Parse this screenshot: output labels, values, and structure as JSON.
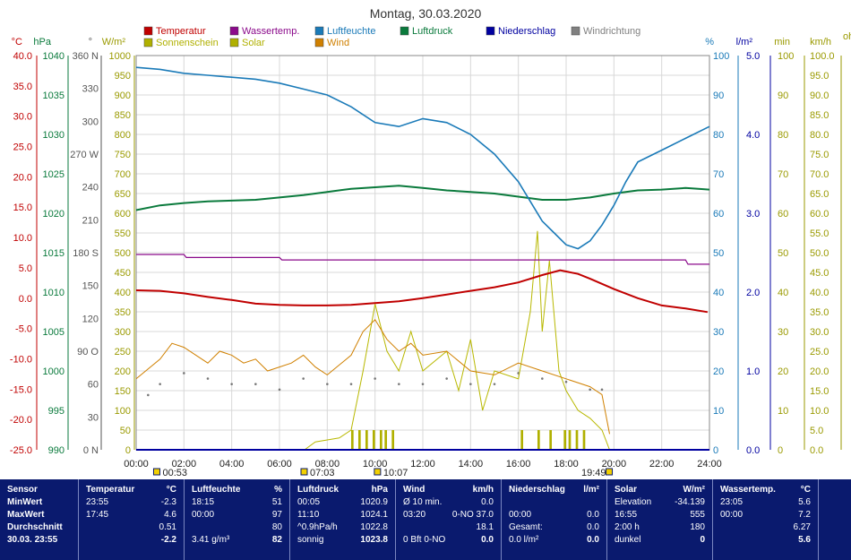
{
  "title": "Montag, 30.03.2020",
  "legend": [
    {
      "label": "Temperatur",
      "color": "#c00000"
    },
    {
      "label": "Wassertemp.",
      "color": "#8b0a8b"
    },
    {
      "label": "Luftfeuchte",
      "color": "#1a7ab8"
    },
    {
      "label": "Luftdruck",
      "color": "#0a7a3c"
    },
    {
      "label": "Niederschlag",
      "color": "#0000a0"
    },
    {
      "label": "Windrichtung",
      "color": "#808080"
    },
    {
      "label": "Sonnenschein",
      "color": "#b0b000"
    },
    {
      "label": "Solar",
      "color": "#b0b000"
    },
    {
      "label": "Wind",
      "color": "#d08000"
    }
  ],
  "axes": {
    "temp": {
      "unit": "°C",
      "color": "#c00000",
      "ticks": [
        "40.0",
        "35.0",
        "30.0",
        "25.0",
        "20.0",
        "15.0",
        "10.0",
        "5.0",
        "0.0",
        "-5.0",
        "-10.0",
        "-15.0",
        "-20.0",
        "-25.0"
      ]
    },
    "press": {
      "unit": "hPa",
      "color": "#0a7a3c",
      "ticks": [
        "1040",
        "1035",
        "1030",
        "1025",
        "1020",
        "1015",
        "1010",
        "1005",
        "1000",
        "995",
        "990"
      ]
    },
    "dir": {
      "unit": "°",
      "color": "#555555",
      "ticks": [
        "360 N",
        "330",
        "300",
        "270 W",
        "240",
        "210",
        "180 S",
        "150",
        "120",
        "90 O",
        "60",
        "30",
        "0 N"
      ]
    },
    "solar": {
      "unit": "W/m²",
      "color": "#9a9a00",
      "ticks": [
        "1000",
        "950",
        "900",
        "850",
        "800",
        "750",
        "700",
        "650",
        "600",
        "550",
        "500",
        "450",
        "400",
        "350",
        "300",
        "250",
        "200",
        "150",
        "100",
        "50",
        "0"
      ]
    },
    "hum": {
      "unit": "%",
      "color": "#1a7ab8",
      "ticks": [
        "100",
        "90",
        "80",
        "70",
        "60",
        "50",
        "40",
        "30",
        "20",
        "10",
        "0"
      ]
    },
    "rain": {
      "unit": "l/m²",
      "color": "#0000a0",
      "ticks": [
        "5.0",
        "4.0",
        "3.0",
        "2.0",
        "1.0",
        "0.0"
      ]
    },
    "sun": {
      "unit": "min",
      "color": "#9a9a00",
      "ticks": [
        "100",
        "90",
        "80",
        "70",
        "60",
        "50",
        "40",
        "30",
        "20",
        "10",
        "0"
      ]
    },
    "wind": {
      "unit": "km/h",
      "color": "#9a9a00",
      "ticks": [
        "100.0",
        "95.0",
        "90.0",
        "85.0",
        "80.0",
        "75.0",
        "70.0",
        "65.0",
        "60.0",
        "55.0",
        "50.0",
        "45.0",
        "40.0",
        "35.0",
        "30.0",
        "25.0",
        "20.0",
        "15.0",
        "10.0",
        "5.0",
        "0.0"
      ]
    },
    "edge_label": "oh"
  },
  "time_ticks": [
    "00:00",
    "02:00",
    "04:00",
    "06:00",
    "08:00",
    "10:00",
    "12:00",
    "14:00",
    "16:00",
    "18:00",
    "20:00",
    "22:00",
    "24:00"
  ],
  "time_markers": [
    {
      "label": "00:53",
      "hour": 0.88
    },
    {
      "label": "07:03",
      "hour": 7.05
    },
    {
      "label": "10:07",
      "hour": 10.12
    },
    {
      "label": "19:49",
      "hour": 19.82
    }
  ],
  "chart_data": {
    "type": "line",
    "x_unit": "hour",
    "xlim": [
      0,
      24
    ],
    "series": [
      {
        "name": "Luftfeuchte",
        "unit": "%",
        "points": [
          [
            0,
            97
          ],
          [
            1,
            96.5
          ],
          [
            2,
            95.5
          ],
          [
            3,
            95
          ],
          [
            4,
            94.5
          ],
          [
            5,
            94
          ],
          [
            6,
            93
          ],
          [
            7,
            91.5
          ],
          [
            8,
            90
          ],
          [
            9,
            87
          ],
          [
            10,
            83
          ],
          [
            11,
            82
          ],
          [
            12,
            84
          ],
          [
            13,
            83
          ],
          [
            14,
            80
          ],
          [
            15,
            75
          ],
          [
            16,
            68
          ],
          [
            16.5,
            63
          ],
          [
            17,
            58
          ],
          [
            17.5,
            55
          ],
          [
            18,
            52
          ],
          [
            18.5,
            51
          ],
          [
            19,
            53
          ],
          [
            19.5,
            57
          ],
          [
            20,
            62
          ],
          [
            20.5,
            68
          ],
          [
            21,
            73
          ],
          [
            22,
            76
          ],
          [
            23,
            79
          ],
          [
            24,
            82
          ]
        ]
      },
      {
        "name": "Luftdruck",
        "unit": "hPa",
        "points": [
          [
            0,
            1020.4
          ],
          [
            1,
            1021.0
          ],
          [
            2,
            1021.3
          ],
          [
            3,
            1021.5
          ],
          [
            4,
            1021.6
          ],
          [
            5,
            1021.7
          ],
          [
            6,
            1022.0
          ],
          [
            7,
            1022.3
          ],
          [
            8,
            1022.7
          ],
          [
            9,
            1023.1
          ],
          [
            10,
            1023.3
          ],
          [
            11,
            1023.5
          ],
          [
            12,
            1023.2
          ],
          [
            13,
            1022.9
          ],
          [
            14,
            1022.7
          ],
          [
            15,
            1022.5
          ],
          [
            16,
            1022.1
          ],
          [
            17,
            1021.7
          ],
          [
            18,
            1021.7
          ],
          [
            19,
            1022.0
          ],
          [
            20,
            1022.5
          ],
          [
            21,
            1022.9
          ],
          [
            22,
            1023.0
          ],
          [
            23,
            1023.2
          ],
          [
            24,
            1023.0
          ]
        ]
      },
      {
        "name": "Wassertemp.",
        "unit": "°C",
        "points": [
          [
            0,
            7.2
          ],
          [
            2,
            7.2
          ],
          [
            2.1,
            6.7
          ],
          [
            6,
            6.7
          ],
          [
            6.1,
            6.3
          ],
          [
            23.0,
            6.3
          ],
          [
            23.1,
            5.6
          ],
          [
            24,
            5.6
          ]
        ]
      },
      {
        "name": "Temperatur",
        "unit": "°C",
        "points": [
          [
            0,
            1.3
          ],
          [
            1,
            1.2
          ],
          [
            2,
            0.8
          ],
          [
            3,
            0.2
          ],
          [
            4,
            -0.3
          ],
          [
            5,
            -0.9
          ],
          [
            6,
            -1.1
          ],
          [
            7,
            -1.2
          ],
          [
            8,
            -1.2
          ],
          [
            9,
            -1.1
          ],
          [
            10,
            -0.8
          ],
          [
            11,
            -0.5
          ],
          [
            12,
            0.0
          ],
          [
            13,
            0.6
          ],
          [
            14,
            1.2
          ],
          [
            15,
            1.8
          ],
          [
            16,
            2.6
          ],
          [
            17,
            3.8
          ],
          [
            17.75,
            4.6
          ],
          [
            18.5,
            4.0
          ],
          [
            19,
            3.2
          ],
          [
            20,
            1.5
          ],
          [
            21,
            0.0
          ],
          [
            22,
            -1.2
          ],
          [
            23,
            -1.7
          ],
          [
            23.92,
            -2.3
          ]
        ]
      },
      {
        "name": "Solar",
        "unit": "W/m²",
        "points": [
          [
            0,
            0
          ],
          [
            7.05,
            0
          ],
          [
            7.5,
            20
          ],
          [
            8.5,
            30
          ],
          [
            9,
            50
          ],
          [
            9.5,
            200
          ],
          [
            10,
            370
          ],
          [
            10.5,
            250
          ],
          [
            11,
            200
          ],
          [
            11.5,
            300
          ],
          [
            12,
            200
          ],
          [
            13,
            250
          ],
          [
            13.5,
            150
          ],
          [
            14,
            280
          ],
          [
            14.5,
            100
          ],
          [
            15,
            200
          ],
          [
            16,
            180
          ],
          [
            16.5,
            350
          ],
          [
            16.8,
            555
          ],
          [
            17.0,
            300
          ],
          [
            17.3,
            480
          ],
          [
            17.7,
            200
          ],
          [
            18,
            150
          ],
          [
            18.5,
            100
          ],
          [
            19,
            80
          ],
          [
            19.5,
            50
          ],
          [
            19.82,
            0
          ],
          [
            24,
            0
          ]
        ]
      },
      {
        "name": "Wind",
        "unit": "km/h",
        "points": [
          [
            0,
            18
          ],
          [
            1,
            23
          ],
          [
            1.5,
            27
          ],
          [
            2,
            26
          ],
          [
            2.5,
            24
          ],
          [
            3,
            22
          ],
          [
            3.5,
            25
          ],
          [
            4,
            24
          ],
          [
            4.5,
            22
          ],
          [
            5,
            23
          ],
          [
            5.5,
            20
          ],
          [
            6,
            21
          ],
          [
            6.5,
            22
          ],
          [
            7,
            24
          ],
          [
            7.5,
            21
          ],
          [
            8,
            19
          ],
          [
            9,
            24
          ],
          [
            9.5,
            30
          ],
          [
            10,
            33
          ],
          [
            10.5,
            28
          ],
          [
            11,
            25
          ],
          [
            11.5,
            27
          ],
          [
            12,
            24
          ],
          [
            13,
            25
          ],
          [
            14,
            20
          ],
          [
            15,
            19
          ],
          [
            16,
            22
          ],
          [
            17,
            20
          ],
          [
            18,
            18
          ],
          [
            19,
            16
          ],
          [
            19.5,
            14
          ],
          [
            19.82,
            4
          ]
        ]
      },
      {
        "name": "Windrichtung",
        "unit": "°",
        "points": [
          [
            0.5,
            50
          ],
          [
            1,
            60
          ],
          [
            2,
            70
          ],
          [
            3,
            65
          ],
          [
            4,
            60
          ],
          [
            5,
            60
          ],
          [
            6,
            55
          ],
          [
            7,
            65
          ],
          [
            8,
            60
          ],
          [
            9,
            60
          ],
          [
            10,
            65
          ],
          [
            11,
            60
          ],
          [
            12,
            60
          ],
          [
            13,
            65
          ],
          [
            14,
            60
          ],
          [
            15,
            60
          ],
          [
            16,
            70
          ],
          [
            17,
            65
          ],
          [
            18,
            62
          ],
          [
            19,
            55
          ],
          [
            19.5,
            55
          ]
        ]
      },
      {
        "name": "Sonnenschein",
        "unit": "min",
        "bars": [
          [
            9.0,
            9.1
          ],
          [
            9.3,
            9.4
          ],
          [
            9.6,
            9.7
          ],
          [
            9.9,
            10.0
          ],
          [
            10.2,
            10.3
          ],
          [
            10.4,
            10.5
          ],
          [
            10.7,
            10.8
          ],
          [
            16.1,
            16.2
          ],
          [
            16.8,
            16.9
          ],
          [
            17.3,
            17.4
          ],
          [
            17.9,
            18.0
          ],
          [
            18.1,
            18.2
          ],
          [
            18.4,
            18.5
          ],
          [
            18.7,
            18.8
          ]
        ],
        "value": 5
      }
    ]
  },
  "summary": {
    "sensor": {
      "header": "Sensor",
      "rows": [
        "MinWert",
        "MaxWert",
        "Durchschnitt",
        "30.03. 23:55"
      ]
    },
    "temperatur": {
      "header": "Temperatur",
      "unit": "°C",
      "rows": [
        [
          "23:55",
          "-2.3"
        ],
        [
          "17:45",
          "4.6"
        ],
        [
          "",
          "0.51"
        ],
        [
          "",
          "-2.2"
        ]
      ]
    },
    "luftfeuchte": {
      "header": "Luftfeuchte",
      "unit": "%",
      "rows": [
        [
          "18:15",
          "51"
        ],
        [
          "00:00",
          "97"
        ],
        [
          "",
          "80"
        ],
        [
          "3.41 g/m³",
          "82"
        ]
      ]
    },
    "luftdruck": {
      "header": "Luftdruck",
      "unit": "hPa",
      "rows": [
        [
          "00:05",
          "1020.9"
        ],
        [
          "11:10",
          "1024.1"
        ],
        [
          "^0.9hPa/h",
          "1022.8"
        ],
        [
          "sonnig",
          "1023.8"
        ]
      ]
    },
    "wind": {
      "header": "Wind",
      "unit": "km/h",
      "rows": [
        [
          "Ø 10 min.",
          "0.0"
        ],
        [
          "03:20",
          "0-NO 37.0"
        ],
        [
          "",
          "18.1"
        ],
        [
          "0 Bft 0-NO",
          "0.0"
        ]
      ]
    },
    "niederschlag": {
      "header": "Niederschlag",
      "unit": "l/m²",
      "rows": [
        [
          "",
          ""
        ],
        [
          "00:00",
          "0.0"
        ],
        [
          "Gesamt:",
          "0.0"
        ],
        [
          "0.0 l/m²",
          "0.0"
        ]
      ]
    },
    "solar": {
      "header": "Solar",
      "unit": "W/m²",
      "rows": [
        [
          "Elevation",
          "-34.139"
        ],
        [
          "16:55",
          "555"
        ],
        [
          "2:00 h",
          "180"
        ],
        [
          "dunkel",
          "0"
        ]
      ]
    },
    "wassertemp": {
      "header": "Wassertemp.",
      "unit": "°C",
      "rows": [
        [
          "23:05",
          "5.6"
        ],
        [
          "00:00",
          "7.2"
        ],
        [
          "",
          "6.27"
        ],
        [
          "",
          "5.6"
        ]
      ]
    }
  }
}
